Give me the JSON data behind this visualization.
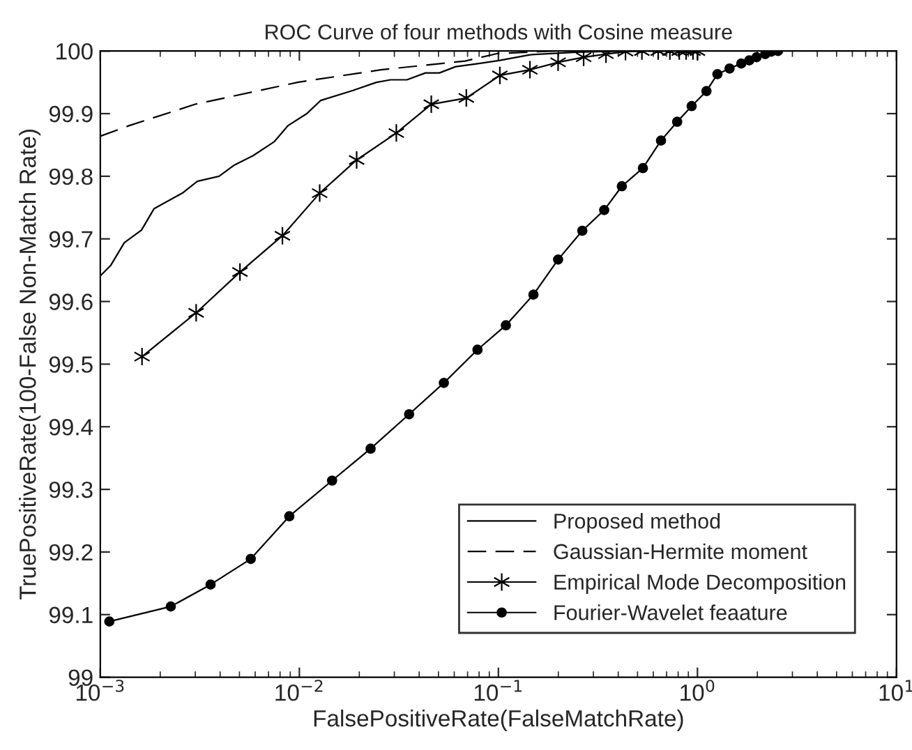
{
  "chart_data": {
    "type": "line",
    "title": "ROC Curve of four methods with Cosine measure",
    "xlabel": "FalsePositiveRate(FalseMatchRate)",
    "ylabel": "TruePositiveRate(100-False Non-Match Rate)",
    "log": "x",
    "grid": false,
    "legend": "bottom right",
    "xlim": [
      0.001,
      10
    ],
    "xticks": [
      {
        "value": 0.001,
        "label": "10$^{−3}$"
      },
      {
        "value": 0.01,
        "label": "10$^{−2}$"
      },
      {
        "value": 0.1,
        "label": "10$^{−1}$"
      },
      {
        "value": 1,
        "label": "10$^{0}$"
      },
      {
        "value": 10,
        "label": "10$^{1}$"
      }
    ],
    "ylim": [
      99,
      100
    ],
    "yticks": [
      99,
      99.1,
      99.2,
      99.3,
      99.4,
      99.5,
      99.6,
      99.7,
      99.8,
      99.9,
      100
    ],
    "series": [
      {
        "name": "Proposed method",
        "color": "#000000",
        "marker": "none",
        "line_style": "solid",
        "x": [
          0.001,
          0.00113,
          0.00132,
          0.00161,
          0.00186,
          0.00261,
          0.00307,
          0.00395,
          0.00472,
          0.00586,
          0.00747,
          0.00878,
          0.0109,
          0.0128,
          0.0186,
          0.0244,
          0.0287,
          0.0347,
          0.043,
          0.0505,
          0.061,
          0.0798,
          0.1017,
          0.144,
          0.247,
          0.424
        ],
        "values": [
          99.641,
          99.658,
          99.694,
          99.714,
          99.748,
          99.774,
          99.792,
          99.8,
          99.818,
          99.833,
          99.855,
          99.881,
          99.9,
          99.921,
          99.937,
          99.95,
          99.954,
          99.954,
          99.965,
          99.965,
          99.975,
          99.98,
          99.985,
          99.994,
          99.998,
          100
        ]
      },
      {
        "name": "Gaussian-Hermite moment",
        "color": "#000000",
        "marker": "none",
        "line_style": "dashed",
        "x": [
          0.001,
          0.0014,
          0.003,
          0.0098,
          0.0257,
          0.068,
          0.099,
          0.19,
          0.95
        ],
        "values": [
          99.864,
          99.881,
          99.915,
          99.95,
          99.97,
          99.984,
          99.996,
          100,
          100
        ]
      },
      {
        "name": "Empirical Mode Decomposition",
        "color": "#000000",
        "marker": "cross",
        "line_style": "solid",
        "x": [
          0.00162,
          0.00303,
          0.00503,
          0.00822,
          0.01265,
          0.0194,
          0.0307,
          0.046,
          0.069,
          0.1017,
          0.144,
          0.1995,
          0.268,
          0.347,
          0.435,
          0.526,
          0.635,
          0.727,
          0.81,
          0.877,
          0.95,
          1.0
        ],
        "values": [
          99.512,
          99.582,
          99.647,
          99.705,
          99.773,
          99.826,
          99.869,
          99.915,
          99.925,
          99.961,
          99.97,
          99.982,
          99.99,
          99.995,
          99.999,
          100,
          100,
          100,
          100,
          100,
          100,
          100
        ]
      },
      {
        "name": "Fourier-Wavelet feaature",
        "color": "#000000",
        "marker": "circle",
        "line_style": "solid",
        "x": [
          0.00111,
          0.00226,
          0.00358,
          0.0057,
          0.0089,
          0.0146,
          0.0228,
          0.0356,
          0.0532,
          0.0785,
          0.109,
          0.15,
          0.1995,
          0.264,
          0.34,
          0.417,
          0.532,
          0.656,
          0.791,
          0.935,
          1.11,
          1.26,
          1.45,
          1.66,
          1.82,
          1.98,
          2.19,
          2.35,
          2.54
        ],
        "values": [
          99.089,
          99.113,
          99.148,
          99.189,
          99.257,
          99.314,
          99.365,
          99.42,
          99.47,
          99.523,
          99.562,
          99.611,
          99.667,
          99.713,
          99.746,
          99.784,
          99.813,
          99.857,
          99.887,
          99.912,
          99.936,
          99.963,
          99.972,
          99.98,
          99.985,
          99.99,
          99.995,
          99.999,
          100
        ]
      }
    ]
  }
}
